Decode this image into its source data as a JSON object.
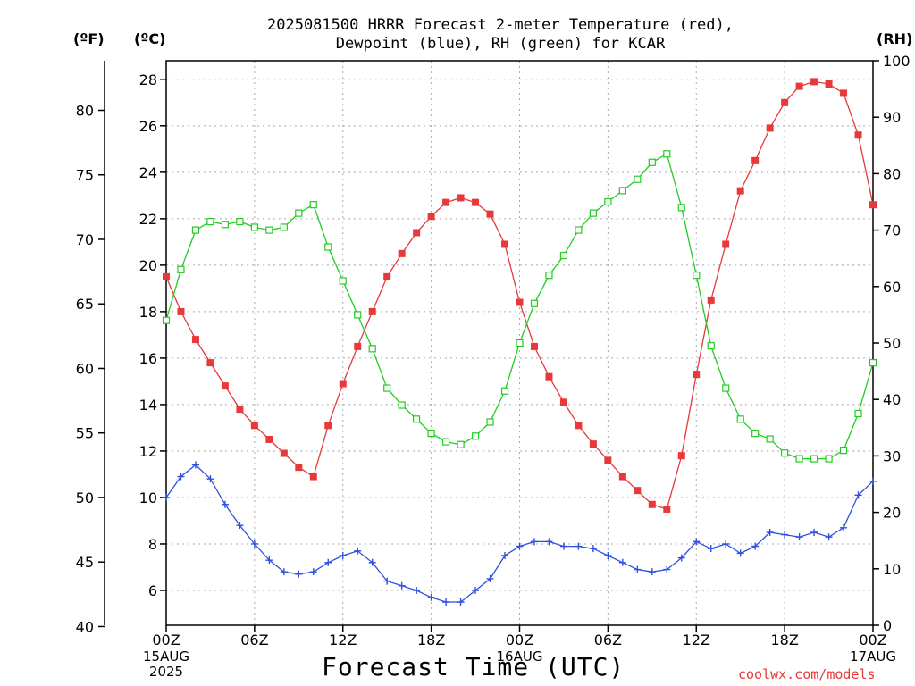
{
  "chart_data": {
    "type": "line",
    "title_line1": "2025081500 HRRR Forecast 2-meter Temperature (red),",
    "title_line2": "Dewpoint (blue), RH (green) for KCAR",
    "left_axis_unit": "(ºF)",
    "celsius_axis_unit": "(ºC)",
    "right_axis_unit": "(RH)",
    "xlabel": "Forecast Time (UTC)",
    "credit": "coolwx.com/models",
    "x_hours": [
      0,
      1,
      2,
      3,
      4,
      5,
      6,
      7,
      8,
      9,
      10,
      11,
      12,
      13,
      14,
      15,
      16,
      17,
      18,
      19,
      20,
      21,
      22,
      23,
      24,
      25,
      26,
      27,
      28,
      29,
      30,
      31,
      32,
      33,
      34,
      35,
      36,
      37,
      38,
      39,
      40,
      41,
      42,
      43,
      44,
      45,
      46,
      47,
      48
    ],
    "x_ticks": [
      {
        "hour": 0,
        "label": "00Z",
        "date": "15AUG",
        "year": "2025"
      },
      {
        "hour": 6,
        "label": "06Z"
      },
      {
        "hour": 12,
        "label": "12Z"
      },
      {
        "hour": 18,
        "label": "18Z"
      },
      {
        "hour": 24,
        "label": "00Z",
        "date": "16AUG"
      },
      {
        "hour": 30,
        "label": "06Z"
      },
      {
        "hour": 36,
        "label": "12Z"
      },
      {
        "hour": 42,
        "label": "18Z"
      },
      {
        "hour": 48,
        "label": "00Z",
        "date": "17AUG"
      }
    ],
    "celsius_ticks": [
      "6",
      "8",
      "10",
      "12",
      "14",
      "16",
      "18",
      "20",
      "22",
      "24",
      "26",
      "28"
    ],
    "fahrenheit_ticks": [
      "40",
      "45",
      "50",
      "55",
      "60",
      "65",
      "70",
      "75",
      "80"
    ],
    "rh_ticks": [
      "0",
      "10",
      "20",
      "30",
      "40",
      "50",
      "60",
      "70",
      "80",
      "90",
      "100"
    ],
    "ylim_celsius": [
      4.5,
      28.8
    ],
    "ylim_rh": [
      0,
      100
    ],
    "grid": true,
    "series": [
      {
        "name": "Temperature",
        "axis": "celsius",
        "color": "#e8383a",
        "marker": "filled-square",
        "values": [
          19.5,
          18.0,
          16.8,
          15.8,
          14.8,
          13.8,
          13.1,
          12.5,
          11.9,
          11.3,
          10.9,
          13.1,
          14.9,
          16.5,
          18.0,
          19.5,
          20.5,
          21.4,
          22.1,
          22.7,
          22.9,
          22.7,
          22.2,
          20.9,
          18.4,
          16.5,
          15.2,
          14.1,
          13.1,
          12.3,
          11.6,
          10.9,
          10.3,
          9.7,
          9.5,
          11.8,
          15.3,
          18.5,
          20.9,
          23.2,
          24.5,
          25.9,
          27.0,
          27.7,
          27.9,
          27.8,
          27.4,
          25.6,
          22.6
        ]
      },
      {
        "name": "Dewpoint",
        "axis": "celsius",
        "color": "#2f4fe0",
        "marker": "plus",
        "values": [
          10.0,
          10.9,
          11.4,
          10.8,
          9.7,
          8.8,
          8.0,
          7.3,
          6.8,
          6.7,
          6.8,
          7.2,
          7.5,
          7.7,
          7.2,
          6.4,
          6.2,
          6.0,
          5.7,
          5.5,
          5.5,
          6.0,
          6.5,
          7.5,
          7.9,
          8.1,
          8.1,
          7.9,
          7.9,
          7.8,
          7.5,
          7.2,
          6.9,
          6.8,
          6.9,
          7.4,
          8.1,
          7.8,
          8.0,
          7.6,
          7.9,
          8.5,
          8.4,
          8.3,
          8.5,
          8.3,
          8.7,
          10.1,
          10.7
        ]
      },
      {
        "name": "RH",
        "axis": "rh",
        "color": "#22cc22",
        "marker": "open-square",
        "values": [
          54,
          63,
          70,
          71.5,
          71,
          71.5,
          70.5,
          70,
          70.5,
          73,
          74.5,
          67,
          61,
          55,
          49,
          42,
          39,
          36.5,
          34,
          32.5,
          32,
          33.5,
          36,
          41.5,
          50,
          57,
          62,
          65.5,
          70,
          73,
          75,
          77,
          79,
          82,
          83.5,
          74,
          62,
          49.5,
          42,
          36.5,
          34,
          33,
          30.5,
          29.5,
          29.5,
          29.5,
          31,
          37.5,
          46.5
        ]
      }
    ]
  }
}
